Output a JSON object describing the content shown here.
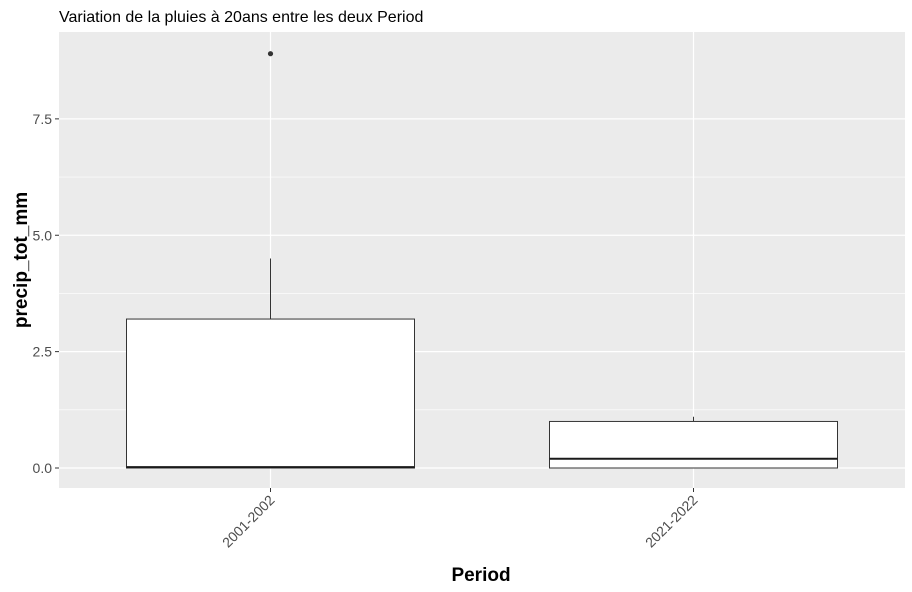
{
  "chart_data": {
    "type": "boxplot",
    "title": "Variation  de la pluies à 20ans entre les deux Period",
    "xlabel": "Period",
    "ylabel": "precip_tot_mm",
    "categories": [
      "2001-2002",
      "2021-2022"
    ],
    "ylim": [
      -0.45,
      9.3
    ],
    "yticks": [
      0.0,
      2.5,
      5.0,
      7.5
    ],
    "ytick_labels": [
      "0.0",
      "2.5",
      "5.0",
      "7.5"
    ],
    "boxes": [
      {
        "category": "2001-2002",
        "min": 0.0,
        "q1": 0.0,
        "median": 0.02,
        "q3": 3.2,
        "max": 4.5,
        "outliers": [
          8.9
        ]
      },
      {
        "category": "2021-2022",
        "min": 0.0,
        "q1": 0.0,
        "median": 0.2,
        "q3": 1.0,
        "max": 1.1,
        "outliers": []
      }
    ],
    "grid": true,
    "background": "#ebebeb",
    "box_fill": "#ffffff",
    "box_stroke": "#333333",
    "outlier_color": "#333333"
  }
}
